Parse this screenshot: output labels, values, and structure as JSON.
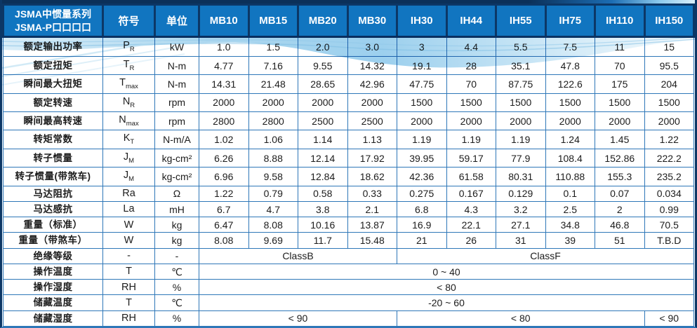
{
  "colors": {
    "header_blue": "#1175c0",
    "border_dark": "#0c3766",
    "border_cell": "#2e77b8",
    "text_dark": "#1c1c1c",
    "header_text": "#ffffff",
    "wave_blue": "#92cbec"
  },
  "table": {
    "title_lines": [
      "JSMA中惯量系列",
      "JSMA-P口口口口"
    ],
    "header": {
      "symbol": "符号",
      "unit": "单位",
      "models": [
        "MB10",
        "MB15",
        "MB20",
        "MB30",
        "IH30",
        "IH44",
        "IH55",
        "IH75",
        "IH110",
        "IH150"
      ]
    },
    "rows": [
      {
        "label": "额定输出功率",
        "symbol": {
          "base": "P",
          "sub": "R"
        },
        "unit": "kW",
        "values": [
          "1.0",
          "1.5",
          "2.0",
          "3.0",
          "3",
          "4.4",
          "5.5",
          "7.5",
          "11",
          "15"
        ]
      },
      {
        "label": "额定扭矩",
        "symbol": {
          "base": "T",
          "sub": "R"
        },
        "unit": "N-m",
        "values": [
          "4.77",
          "7.16",
          "9.55",
          "14.32",
          "19.1",
          "28",
          "35.1",
          "47.8",
          "70",
          "95.5"
        ]
      },
      {
        "label": "瞬间最大扭矩",
        "symbol": {
          "base": "T",
          "sub": "max"
        },
        "unit": "N-m",
        "values": [
          "14.31",
          "21.48",
          "28.65",
          "42.96",
          "47.75",
          "70",
          "87.75",
          "122.6",
          "175",
          "204"
        ]
      },
      {
        "label": "额定转速",
        "symbol": {
          "base": "N",
          "sub": "R"
        },
        "unit": "rpm",
        "values": [
          "2000",
          "2000",
          "2000",
          "2000",
          "1500",
          "1500",
          "1500",
          "1500",
          "1500",
          "1500"
        ]
      },
      {
        "label": "瞬间最高转速",
        "symbol": {
          "base": "N",
          "sub": "max"
        },
        "unit": "rpm",
        "values": [
          "2800",
          "2800",
          "2500",
          "2500",
          "2000",
          "2000",
          "2000",
          "2000",
          "2000",
          "2000"
        ]
      },
      {
        "label": "转矩常数",
        "symbol": {
          "base": "K",
          "sub": "T"
        },
        "unit": "N-m/A",
        "values": [
          "1.02",
          "1.06",
          "1.14",
          "1.13",
          "1.19",
          "1.19",
          "1.19",
          "1.24",
          "1.45",
          "1.22"
        ]
      },
      {
        "label": "转子惯量",
        "symbol": {
          "base": "J",
          "sub": "M"
        },
        "unit": "kg-cm²",
        "values": [
          "6.26",
          "8.88",
          "12.14",
          "17.92",
          "39.95",
          "59.17",
          "77.9",
          "108.4",
          "152.86",
          "222.2"
        ]
      },
      {
        "label": "转子惯量(带煞车)",
        "symbol": {
          "base": "J",
          "sub": "M"
        },
        "unit": "kg-cm²",
        "values": [
          "6.96",
          "9.58",
          "12.84",
          "18.62",
          "42.36",
          "61.58",
          "80.31",
          "110.88",
          "155.3",
          "235.2"
        ]
      },
      {
        "label": "马达阻抗",
        "symbol": {
          "base": "Ra"
        },
        "unit": "Ω",
        "values": [
          "1.22",
          "0.79",
          "0.58",
          "0.33",
          "0.275",
          "0.167",
          "0.129",
          "0.1",
          "0.07",
          "0.034"
        ]
      },
      {
        "label": "马达感抗",
        "symbol": {
          "base": "La"
        },
        "unit": "mH",
        "values": [
          "6.7",
          "4.7",
          "3.8",
          "2.1",
          "6.8",
          "4.3",
          "3.2",
          "2.5",
          "2",
          "0.99"
        ]
      },
      {
        "label": "重量（标准）",
        "symbol": {
          "base": "W"
        },
        "unit": "kg",
        "values": [
          "6.47",
          "8.08",
          "10.16",
          "13.87",
          "16.9",
          "22.1",
          "27.1",
          "34.8",
          "46.8",
          "70.5"
        ]
      },
      {
        "label": "重量（带煞车）",
        "symbol": {
          "base": "W"
        },
        "unit": "kg",
        "values": [
          "8.08",
          "9.69",
          "11.7",
          "15.48",
          "21",
          "26",
          "31",
          "39",
          "51",
          "T.B.D"
        ]
      },
      {
        "label": "绝缘等级",
        "symbol": {
          "base": "-"
        },
        "unit": "-",
        "spans": [
          {
            "text": "ClassB",
            "cols": 4
          },
          {
            "text": "ClassF",
            "cols": 6
          }
        ]
      },
      {
        "label": "操作温度",
        "symbol": {
          "base": "T"
        },
        "unit": "℃",
        "spans": [
          {
            "text": "0 ~ 40",
            "cols": 10
          }
        ]
      },
      {
        "label": "操作湿度",
        "symbol": {
          "base": "RH"
        },
        "unit": "%",
        "spans": [
          {
            "text": "< 80",
            "cols": 10
          }
        ]
      },
      {
        "label": "储藏温度",
        "symbol": {
          "base": "T"
        },
        "unit": "℃",
        "spans": [
          {
            "text": "-20 ~ 60",
            "cols": 10
          }
        ]
      },
      {
        "label": "储藏湿度",
        "symbol": {
          "base": "RH"
        },
        "unit": "%",
        "spans": [
          {
            "text": "< 90",
            "cols": 4
          },
          {
            "text": "< 80",
            "cols": 5
          },
          {
            "text": "< 90",
            "cols": 1
          }
        ]
      }
    ]
  }
}
